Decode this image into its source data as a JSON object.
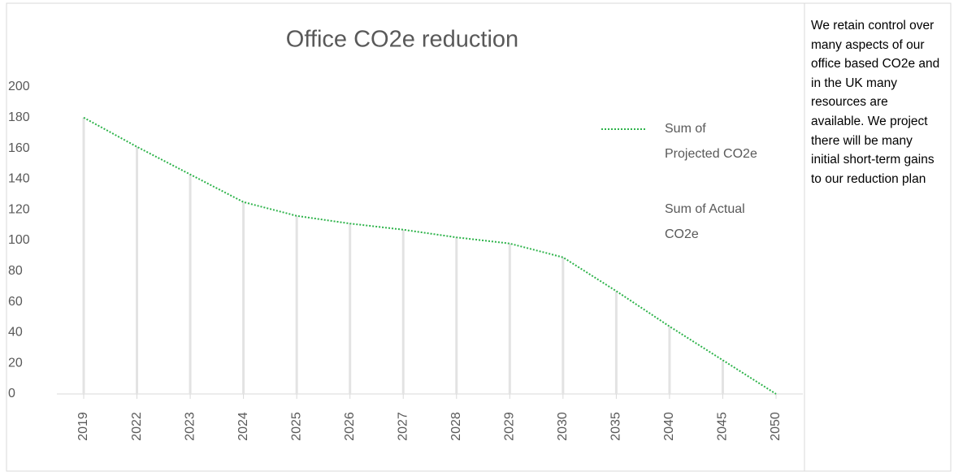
{
  "chart_data": {
    "type": "line",
    "title": "Office CO2e reduction",
    "categories": [
      "2019",
      "2022",
      "2023",
      "2024",
      "2025",
      "2026",
      "2027",
      "2028",
      "2029",
      "2030",
      "2035",
      "2040",
      "2045",
      "2050"
    ],
    "series": [
      {
        "name": "Sum of Projected CO2e",
        "color": "#2db34a",
        "values": [
          180,
          161,
          143,
          125,
          116,
          111,
          107,
          102,
          98,
          89,
          67,
          44,
          22,
          0
        ]
      },
      {
        "name": "Sum of Actual CO2e",
        "values": [
          null,
          null,
          null,
          null,
          null,
          null,
          null,
          null,
          null,
          null,
          null,
          null,
          null,
          null
        ]
      }
    ],
    "ylim": [
      0,
      200
    ],
    "yticks": [
      0,
      20,
      40,
      60,
      80,
      100,
      120,
      140,
      160,
      180,
      200
    ],
    "drop_lines": true,
    "legend": "right"
  },
  "side_text": "We retain control over many aspects of our office based CO2e and in the UK many resources are available. We project there will be many initial short-term gains to our reduction plan"
}
